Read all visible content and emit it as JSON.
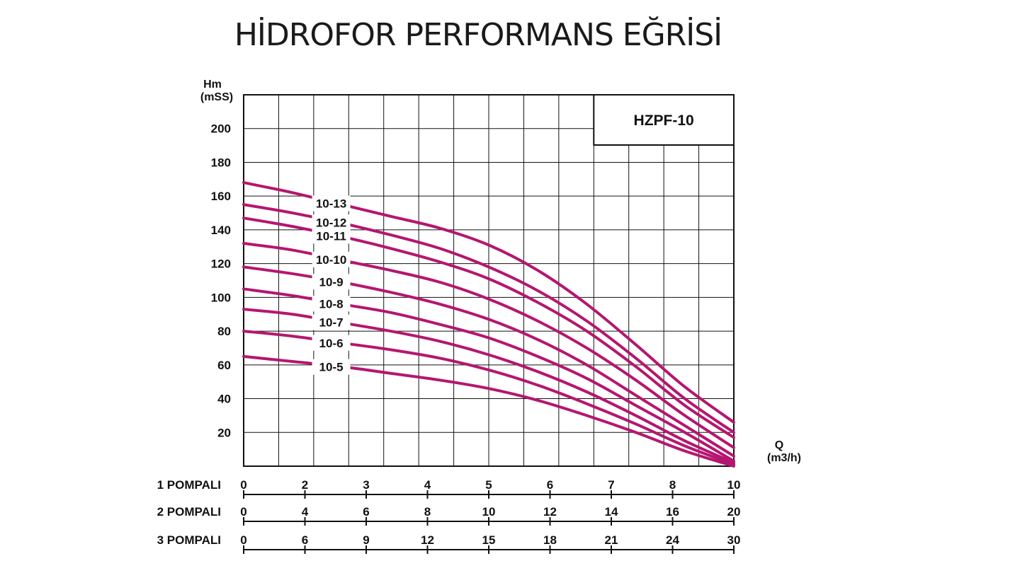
{
  "page_title": "HİDROFOR PERFORMANS EĞRİSİ",
  "chart_data": {
    "type": "line",
    "title": "HİDROFOR PERFORMANS EĞRİSİ",
    "model": "HZPF-10",
    "ylabel": [
      "Hm",
      "(mSS)"
    ],
    "xlabel": [
      "Q",
      "(m3/h)"
    ],
    "ylim": [
      0,
      220
    ],
    "yticks": [
      20,
      40,
      60,
      80,
      100,
      120,
      140,
      160,
      180,
      200
    ],
    "xlim": [
      0,
      10
    ],
    "grid": true,
    "axis_rows": [
      {
        "label": "1 POMPALI",
        "ticks": [
          "0",
          "2",
          "3",
          "4",
          "5",
          "6",
          "7",
          "8",
          "10"
        ]
      },
      {
        "label": "2 POMPALI",
        "ticks": [
          "0",
          "4",
          "6",
          "8",
          "10",
          "12",
          "14",
          "16",
          "20"
        ]
      },
      {
        "label": "3 POMPALI",
        "ticks": [
          "0",
          "6",
          "9",
          "12",
          "15",
          "18",
          "21",
          "24",
          "30"
        ]
      }
    ],
    "x": [
      0,
      1,
      2,
      3,
      4,
      5,
      6,
      7,
      8,
      9,
      10
    ],
    "series": [
      {
        "name": "10-13",
        "values": [
          168,
          162,
          155,
          148,
          141,
          131,
          116,
          96,
          72,
          47,
          26
        ]
      },
      {
        "name": "10-12",
        "values": [
          155,
          150,
          144,
          137,
          129,
          118,
          104,
          86,
          64,
          40,
          20
        ]
      },
      {
        "name": "10-11",
        "values": [
          147,
          142,
          136,
          129,
          121,
          111,
          97,
          80,
          59,
          36,
          17
        ]
      },
      {
        "name": "10-10",
        "values": [
          132,
          128,
          122,
          116,
          109,
          99,
          86,
          70,
          51,
          30,
          11
        ]
      },
      {
        "name": "10-9",
        "values": [
          118,
          114,
          109,
          103,
          96,
          87,
          75,
          60,
          42,
          24,
          6
        ]
      },
      {
        "name": "10-8",
        "values": [
          105,
          101,
          96,
          91,
          84,
          76,
          65,
          52,
          36,
          20,
          3
        ]
      },
      {
        "name": "10-7",
        "values": [
          93,
          90,
          85,
          80,
          74,
          66,
          56,
          44,
          30,
          15,
          2
        ]
      },
      {
        "name": "10-6",
        "values": [
          80,
          77,
          73,
          69,
          64,
          57,
          48,
          37,
          25,
          12,
          1
        ]
      },
      {
        "name": "10-5",
        "values": [
          65,
          62,
          59,
          55,
          51,
          46,
          39,
          30,
          20,
          9,
          0
        ]
      }
    ],
    "line_color": "#b5166f",
    "grid_color": "#111111"
  }
}
